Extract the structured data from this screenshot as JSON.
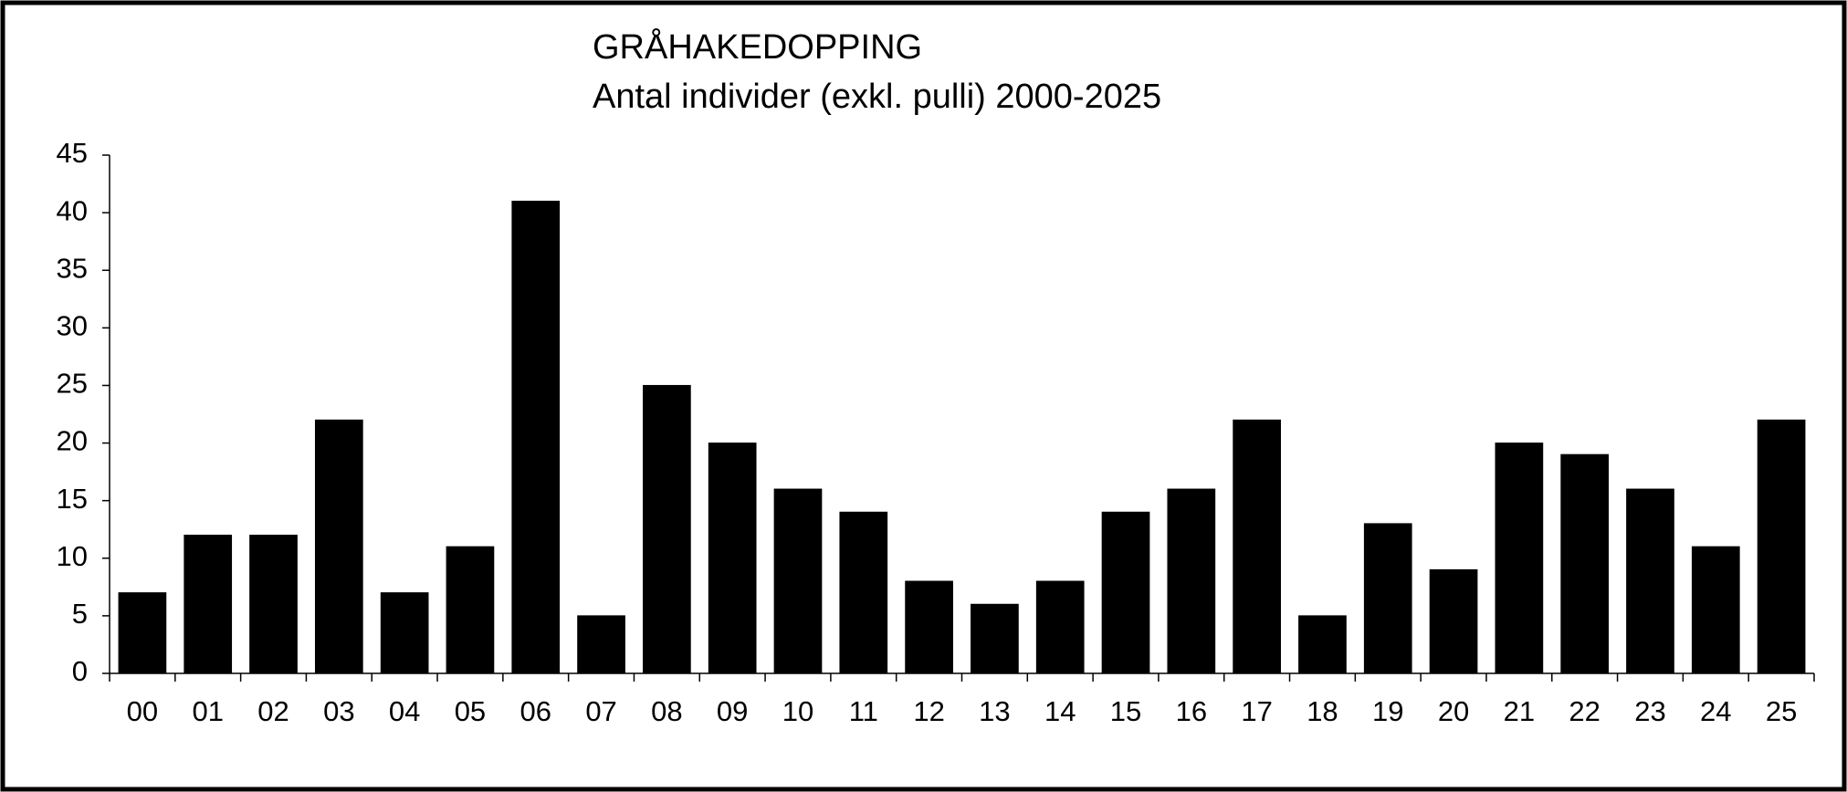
{
  "chart_data": {
    "type": "bar",
    "title": "GRÅHAKEDOPPING",
    "subtitle": "Antal individer (exkl. pulli) 2000-2025",
    "categories": [
      "00",
      "01",
      "02",
      "03",
      "04",
      "05",
      "06",
      "07",
      "08",
      "09",
      "10",
      "11",
      "12",
      "13",
      "14",
      "15",
      "16",
      "17",
      "18",
      "19",
      "20",
      "21",
      "22",
      "23",
      "24",
      "25"
    ],
    "values": [
      7,
      12,
      12,
      22,
      7,
      11,
      41,
      5,
      25,
      20,
      16,
      14,
      8,
      6,
      8,
      14,
      16,
      22,
      5,
      13,
      9,
      20,
      19,
      16,
      11,
      22
    ],
    "color": "#000000",
    "ylim": [
      0,
      45
    ],
    "yticks": [
      0,
      5,
      10,
      15,
      20,
      25,
      30,
      35,
      40,
      45
    ],
    "grid": false
  }
}
